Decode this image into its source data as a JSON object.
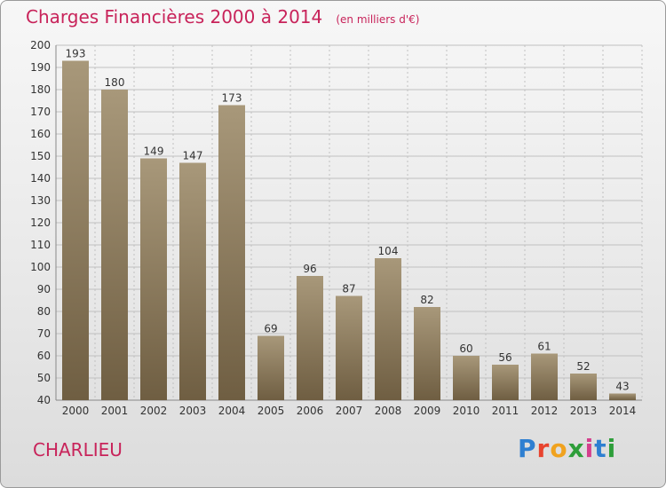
{
  "header": {
    "title": "Charges Financières 2000 à 2014",
    "subtitle": "(en milliers d'€)"
  },
  "footer": {
    "commune": "CHARLIEU",
    "logo_text": "Proxiti",
    "logo_colors": [
      "#2e7fd1",
      "#e8432e",
      "#f0a21e",
      "#2e9e3a",
      "#d43f8d",
      "#2e7fd1",
      "#2e9e3a"
    ]
  },
  "colors": {
    "bar_top": "#a8987a",
    "bar_bottom": "#6f5e42",
    "grid": "#c0c0c0",
    "text": "#333333",
    "accent": "#c8235a"
  },
  "chart_data": {
    "type": "bar",
    "title": "Charges Financières 2000 à 2014",
    "subtitle": "(en milliers d'€)",
    "categories": [
      "2000",
      "2001",
      "2002",
      "2003",
      "2004",
      "2005",
      "2006",
      "2007",
      "2008",
      "2009",
      "2010",
      "2011",
      "2012",
      "2013",
      "2014"
    ],
    "values": [
      193,
      180,
      149,
      147,
      173,
      69,
      96,
      87,
      104,
      82,
      60,
      56,
      61,
      52,
      43
    ],
    "ylim": [
      40,
      200
    ],
    "yticks": [
      40,
      50,
      60,
      70,
      80,
      90,
      100,
      110,
      120,
      130,
      140,
      150,
      160,
      170,
      180,
      190,
      200
    ],
    "grid": true,
    "data_labels": true
  }
}
